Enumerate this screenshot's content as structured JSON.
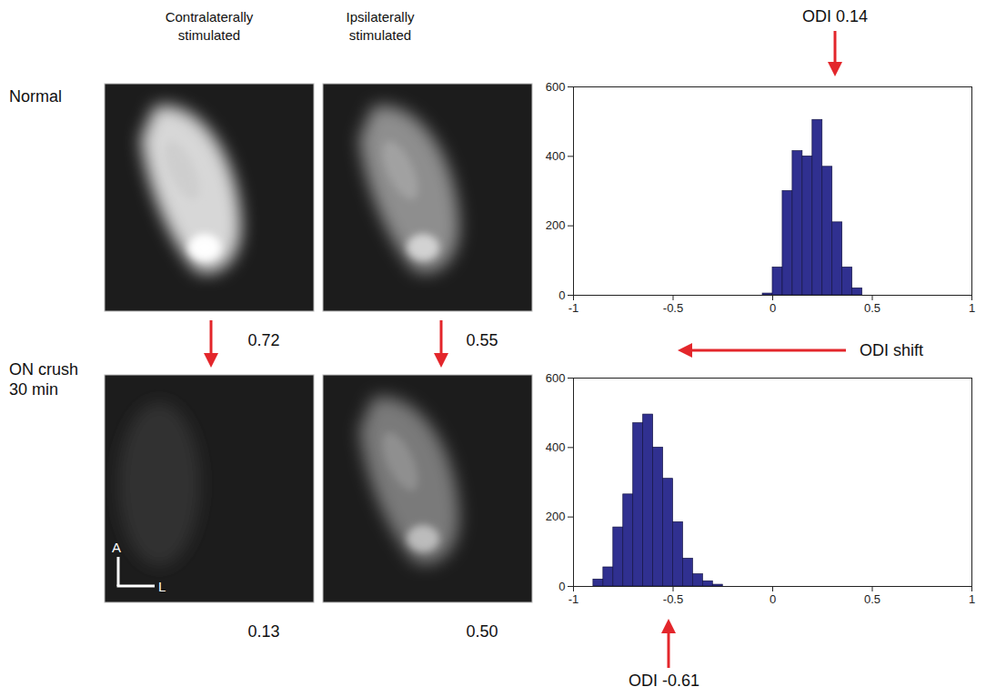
{
  "chart_data": [
    {
      "type": "histogram",
      "bins": [
        -0.05,
        0,
        0.05,
        0.1,
        0.15,
        0.2,
        0.25,
        0.3,
        0.35,
        0.4,
        0.45
      ],
      "values": [
        5,
        80,
        300,
        415,
        400,
        505,
        370,
        210,
        80,
        20
      ],
      "color": "#303090",
      "xlim": [
        -1,
        1
      ],
      "xticks": [
        -1,
        -0.5,
        0,
        0.5,
        1
      ],
      "ylim": [
        0,
        600
      ],
      "yticks": [
        0,
        200,
        400,
        600
      ]
    },
    {
      "type": "histogram",
      "bins": [
        -0.9,
        -0.85,
        -0.8,
        -0.75,
        -0.7,
        -0.65,
        -0.6,
        -0.55,
        -0.5,
        -0.45,
        -0.4,
        -0.35,
        -0.3,
        -0.25
      ],
      "values": [
        20,
        55,
        170,
        265,
        470,
        495,
        400,
        310,
        185,
        80,
        35,
        15,
        5
      ],
      "color": "#303090",
      "xlim": [
        -1,
        1
      ],
      "xticks": [
        -1,
        -0.5,
        0,
        0.5,
        1
      ],
      "ylim": [
        0,
        600
      ],
      "yticks": [
        0,
        200,
        400,
        600
      ]
    }
  ],
  "column_heads": [
    "Contralaterally stimulated",
    "Ipsilaterally stimulated"
  ],
  "rows": [
    {
      "label": "Normal",
      "image_values": [
        0.72,
        0.55
      ]
    },
    {
      "label": "ON crush 30 min",
      "image_values": [
        0.13,
        {
          "value": 0.5,
          "label": "0.50"
        }
      ]
    }
  ],
  "orientation_labels": [
    "A",
    "L"
  ],
  "annotations": {
    "top": "ODI 0.14",
    "middle": "ODI shift",
    "bottom": "ODI -0.61"
  }
}
